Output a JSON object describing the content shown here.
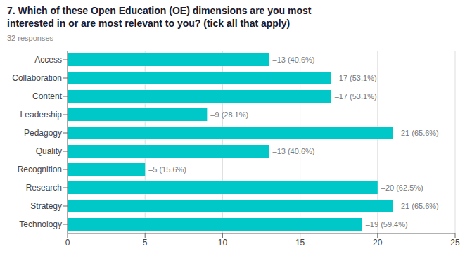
{
  "chart_data": {
    "type": "bar",
    "orientation": "horizontal",
    "title": "7. Which of these Open Education (OE) dimensions are you most\ninterested in or are most relevant to you? (tick all that apply)",
    "subtitle": "32 responses",
    "categories": [
      "Access",
      "Collaboration",
      "Content",
      "Leadership",
      "Pedagogy",
      "Quality",
      "Recognition",
      "Research",
      "Strategy",
      "Technology"
    ],
    "values": [
      13,
      17,
      17,
      9,
      21,
      13,
      5,
      20,
      21,
      19
    ],
    "value_labels": [
      "–13 (40.6%)",
      "–17 (53.1%)",
      "–17 (53.1%)",
      "–9 (28.1%)",
      "–21 (65.6%)",
      "–13 (40.6%)",
      "–5 (15.6%)",
      "–20 (62.5%)",
      "–21 (65.6%)",
      "–19 (59.4%)"
    ],
    "data_labels": true,
    "color": "#00C8C8",
    "xlim": [
      0,
      25
    ],
    "xticks": [
      0,
      5,
      10,
      15,
      20,
      25
    ],
    "grid": true
  }
}
